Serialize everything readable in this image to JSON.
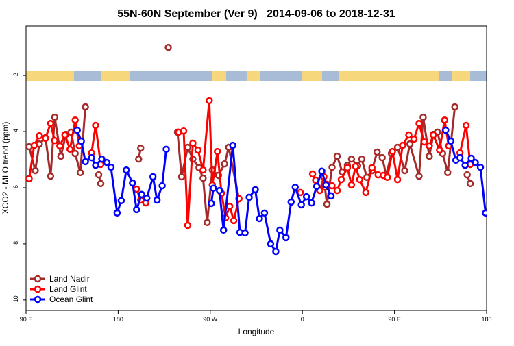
{
  "chart_data": {
    "type": "line",
    "title": "55N-60N September (Ver 9)   2014-09-06 to 2018-12-31",
    "x_label": "Longitude",
    "y_label": "XCO2 - MLO trend (ppm)",
    "xlim": [
      90,
      540
    ],
    "ylim": [
      -10.37,
      -0.24
    ],
    "xticks": [
      {
        "value": 90,
        "label": "90 E"
      },
      180,
      {
        "value": 270,
        "label": "90 W"
      },
      {
        "value": 360,
        "label": "0"
      },
      {
        "value": 450,
        "label": "90 E"
      },
      {
        "value": 540,
        "label": "180"
      }
    ],
    "yticks": [
      -10,
      -8,
      -6,
      -4,
      -2
    ],
    "legend": "bottom-left",
    "series": [
      {
        "name": "Land Nadir",
        "color": "#a52a2a",
        "x": [
          93,
          99,
          103,
          109,
          114,
          118,
          124,
          129,
          134,
          138,
          143,
          148,
          null,
          161,
          163,
          null,
          200,
          202,
          null,
          229,
          null,
          238,
          242,
          248,
          253,
          259,
          263,
          267,
          272,
          278,
          284,
          288,
          298,
          null,
          382,
          384,
          389,
          394,
          399,
          404,
          408,
          414,
          418,
          423,
          428,
          433,
          438,
          442,
          447,
          453,
          460,
          465,
          474,
          478,
          484,
          488,
          492,
          497,
          502,
          509,
          null,
          521,
          524
        ],
        "values": [
          -4.54,
          -5.39,
          -4.44,
          -4.22,
          -5.59,
          -3.49,
          -4.88,
          -4.1,
          -4.02,
          -4.78,
          -5.46,
          -3.12,
          null,
          -5.54,
          -5.85,
          null,
          -4.98,
          -4.59,
          null,
          -1.0,
          null,
          -4.02,
          -5.61,
          -4.56,
          -4.98,
          -5.29,
          -5.66,
          -7.24,
          -5.37,
          -5.56,
          -5.15,
          -4.56,
          -6.39,
          null,
          -5.98,
          -6.59,
          -5.27,
          -4.88,
          -5.44,
          -5.2,
          -4.98,
          -5.22,
          -4.98,
          -5.63,
          -5.39,
          -4.73,
          -4.93,
          -5.56,
          -4.78,
          -4.56,
          -5.39,
          -4.44,
          -5.59,
          -3.49,
          -4.88,
          -4.1,
          -4.02,
          -4.78,
          -5.46,
          -3.12,
          null,
          -5.54,
          -5.85
        ]
      },
      {
        "name": "Land Glint",
        "color": "#ff0000",
        "x": [
          93,
          98,
          103,
          109,
          114,
          118,
          123,
          128,
          133,
          138,
          142,
          null,
          154,
          158,
          163,
          null,
          198,
          202,
          207,
          null,
          239,
          244,
          248,
          253,
          258,
          263,
          269,
          272,
          277,
          281,
          285,
          289,
          293,
          298,
          null,
          358,
          null,
          370,
          373,
          377,
          381,
          384,
          389,
          394,
          398,
          404,
          408,
          412,
          416,
          422,
          428,
          434,
          439,
          443,
          448,
          453,
          458,
          464,
          469,
          474,
          479,
          484,
          488,
          494,
          499,
          503,
          null,
          514,
          520,
          524
        ],
        "values": [
          -5.68,
          -4.49,
          -4.15,
          -4.24,
          -3.71,
          -4.32,
          -4.51,
          -4.12,
          -4.63,
          -3.59,
          -4.51,
          null,
          -4.76,
          -3.78,
          -5.17,
          null,
          -6.05,
          -6.44,
          -6.54,
          null,
          -4.02,
          -3.98,
          -7.34,
          -4.41,
          -4.66,
          -5.37,
          -2.9,
          -5.9,
          -4.71,
          -6.2,
          -7.07,
          -6.66,
          -7.17,
          -6.39,
          null,
          -6.17,
          null,
          -5.51,
          -5.73,
          -6.1,
          -5.61,
          -5.88,
          -5.93,
          -6.1,
          -5.71,
          -5.29,
          -5.9,
          -5.24,
          -5.71,
          -6.17,
          -5.29,
          -5.54,
          -5.56,
          -5.63,
          -4.71,
          -5.71,
          -4.49,
          -4.12,
          -4.27,
          -3.71,
          -4.37,
          -4.51,
          -4.12,
          -4.66,
          -3.59,
          -4.51,
          null,
          -4.76,
          -3.78,
          -5.17
        ]
      },
      {
        "name": "Ocean Glint",
        "color": "#0000ff",
        "x": [
          140,
          144,
          148,
          154,
          158,
          164,
          169,
          173,
          179,
          183,
          188,
          194,
          198,
          203,
          208,
          214,
          218,
          223,
          227,
          null,
          271,
          273,
          279,
          283,
          292,
          299,
          304,
          308,
          314,
          318,
          323,
          329,
          334,
          338,
          344,
          349,
          353,
          359,
          364,
          369,
          374,
          379,
          383,
          388,
          null,
          500,
          505,
          510,
          514,
          519,
          525,
          529,
          534,
          539
        ],
        "values": [
          -3.95,
          -4.34,
          -5.07,
          -4.93,
          -5.2,
          -4.98,
          -5.1,
          -5.27,
          -6.9,
          -6.46,
          -5.37,
          -5.83,
          -6.78,
          -6.24,
          -6.37,
          -5.61,
          -6.44,
          -5.93,
          -4.63,
          null,
          -6.56,
          -6.02,
          -6.1,
          -7.51,
          -4.49,
          -7.59,
          -7.61,
          -6.34,
          -6.07,
          -7.1,
          -6.9,
          -8.0,
          -8.27,
          -7.51,
          -7.78,
          -6.51,
          -5.98,
          -6.61,
          -6.32,
          -6.54,
          -5.95,
          -5.41,
          -5.9,
          -6.29,
          null,
          -3.95,
          -4.34,
          -5.02,
          -4.93,
          -5.2,
          -4.95,
          -5.1,
          -5.27,
          -6.9
        ]
      }
    ]
  }
}
